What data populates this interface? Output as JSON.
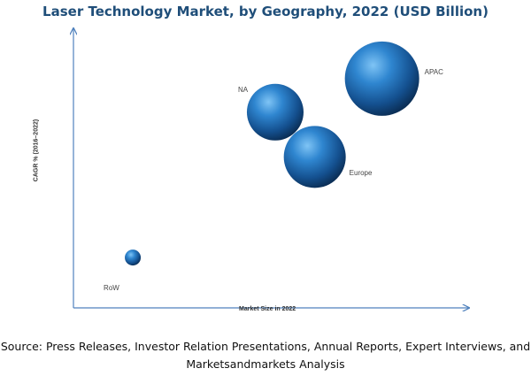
{
  "chart_data": {
    "type": "bubble",
    "title": "Laser Technology Market, by Geography, 2022 (USD Billion)",
    "xlabel": "Market Size in 2022",
    "ylabel": "CAGR % (2016–2022)",
    "grid": false,
    "legend": "none",
    "series": [
      {
        "name": "APAC",
        "x": 0.78,
        "y": 0.82,
        "size": 42
      },
      {
        "name": "NA",
        "x": 0.51,
        "y": 0.7,
        "size": 32
      },
      {
        "name": "Europe",
        "x": 0.61,
        "y": 0.54,
        "size": 35
      },
      {
        "name": "RoW",
        "x": 0.15,
        "y": 0.18,
        "size": 9
      }
    ],
    "bubble_color": "#1f6db5"
  },
  "source": {
    "line1": "Source: Press Releases, Investor Relation Presentations, Annual Reports, Expert Interviews, and",
    "line2": "Marketsandmarkets Analysis"
  }
}
